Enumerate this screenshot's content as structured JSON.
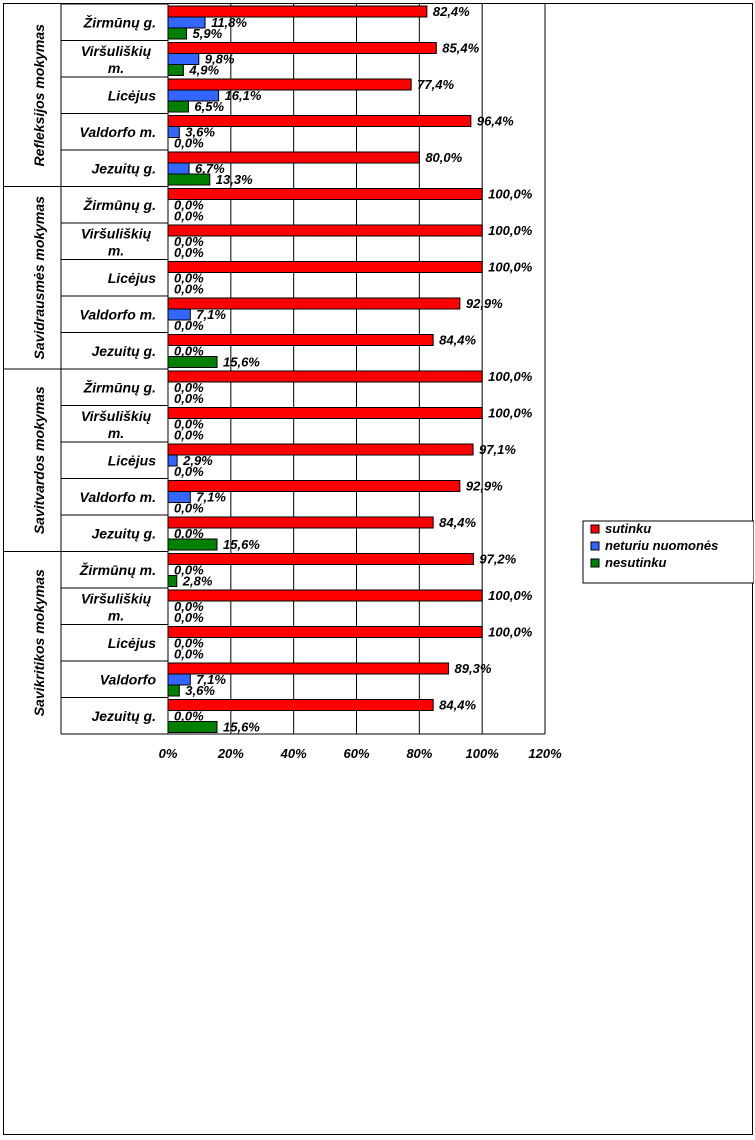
{
  "colors": {
    "sutinku": "#ff0000",
    "neturiu_nuomones": "#3366ff",
    "nesutinku": "#008000",
    "grid": "#000000",
    "plot_bg": "#ffffff"
  },
  "legend": {
    "placement": "right-middle",
    "items": [
      {
        "label": "sutinku",
        "color": "#ff0000"
      },
      {
        "label": "neturiu nuomonės",
        "color": "#3366ff"
      },
      {
        "label": "nesutinku",
        "color": "#008000"
      }
    ]
  },
  "chart_data": {
    "type": "bar",
    "orientation": "horizontal",
    "title": "",
    "xlabel": "",
    "ylabel": "",
    "xlim": [
      0,
      120
    ],
    "x_ticks": [
      "0%",
      "20%",
      "40%",
      "60%",
      "80%",
      "100%",
      "120%"
    ],
    "grid": "vertical",
    "groups": [
      {
        "name": "Refleksijos mokymas",
        "categories": [
          "Žirmūnų g.",
          "Viršuliškių m.",
          "Licėjus",
          "Valdorfo m.",
          "Jezuitų g."
        ],
        "series": [
          {
            "name": "sutinku",
            "values": [
              82.4,
              85.4,
              77.4,
              96.4,
              80.0
            ],
            "labels": [
              "82,4%",
              "85,4%",
              "77,4%",
              "96,4%",
              "80,0%"
            ]
          },
          {
            "name": "neturiu nuomonės",
            "values": [
              11.8,
              9.8,
              16.1,
              3.6,
              6.7
            ],
            "labels": [
              "11,8%",
              "9,8%",
              "16,1%",
              "3,6%",
              "6,7%"
            ]
          },
          {
            "name": "nesutinku",
            "values": [
              5.9,
              4.9,
              6.5,
              0.0,
              13.3
            ],
            "labels": [
              "5,9%",
              "4,9%",
              "6,5%",
              "0,0%",
              "13,3%"
            ]
          }
        ]
      },
      {
        "name": "Savidrausmės mokymas",
        "categories": [
          "Žirmūnų g.",
          "Viršuliškių m.",
          "Licėjus",
          "Valdorfo m.",
          "Jezuitų g."
        ],
        "series": [
          {
            "name": "sutinku",
            "values": [
              100.0,
              100.0,
              100.0,
              92.9,
              84.4
            ],
            "labels": [
              "100,0%",
              "100,0%",
              "100,0%",
              "92,9%",
              "84,4%"
            ]
          },
          {
            "name": "neturiu nuomonės",
            "values": [
              0.0,
              0.0,
              0.0,
              7.1,
              0.0
            ],
            "labels": [
              "0,0%",
              "0,0%",
              "0,0%",
              "7,1%",
              "0,0%"
            ]
          },
          {
            "name": "nesutinku",
            "values": [
              0.0,
              0.0,
              0.0,
              0.0,
              15.6
            ],
            "labels": [
              "0,0%",
              "0,0%",
              "0,0%",
              "0,0%",
              "15,6%"
            ]
          }
        ]
      },
      {
        "name": "Savitvardos mokymas",
        "categories": [
          "Žirmūnų g.",
          "Viršuliškių m.",
          "Licėjus",
          "Valdorfo m.",
          "Jezuitų g."
        ],
        "series": [
          {
            "name": "sutinku",
            "values": [
              100.0,
              100.0,
              97.1,
              92.9,
              84.4
            ],
            "labels": [
              "100,0%",
              "100,0%",
              "97,1%",
              "92,9%",
              "84,4%"
            ]
          },
          {
            "name": "neturiu nuomonės",
            "values": [
              0.0,
              0.0,
              2.9,
              7.1,
              0.0
            ],
            "labels": [
              "0,0%",
              "0,0%",
              "2,9%",
              "7,1%",
              "0,0%"
            ]
          },
          {
            "name": "nesutinku",
            "values": [
              0.0,
              0.0,
              0.0,
              0.0,
              15.6
            ],
            "labels": [
              "0,0%",
              "0,0%",
              "0,0%",
              "0,0%",
              "15,6%"
            ]
          }
        ]
      },
      {
        "name": "Savikritikos mokymas",
        "categories": [
          "Žirmūnų m.",
          "Viršuliškių m.",
          "Licėjus",
          "Valdorfo",
          "Jezuitų g."
        ],
        "series": [
          {
            "name": "sutinku",
            "values": [
              97.2,
              100.0,
              100.0,
              89.3,
              84.4
            ],
            "labels": [
              "97,2%",
              "100,0%",
              "100,0%",
              "89,3%",
              "84,4%"
            ]
          },
          {
            "name": "neturiu nuomonės",
            "values": [
              0.0,
              0.0,
              0.0,
              7.1,
              0.0
            ],
            "labels": [
              "0,0%",
              "0,0%",
              "0,0%",
              "7,1%",
              "0,0%"
            ]
          },
          {
            "name": "nesutinku",
            "values": [
              2.8,
              0.0,
              0.0,
              3.6,
              15.6
            ],
            "labels": [
              "2,8%",
              "0,0%",
              "0,0%",
              "3,6%",
              "15,6%"
            ]
          }
        ]
      }
    ]
  }
}
